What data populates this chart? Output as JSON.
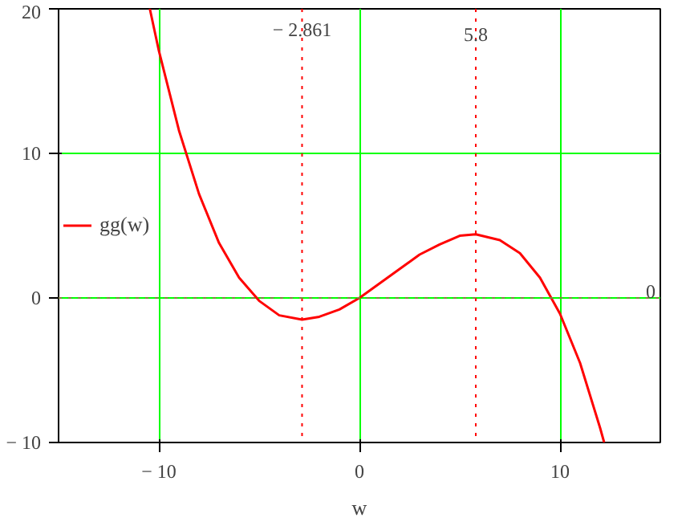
{
  "chart_data": {
    "type": "line",
    "xlabel": "w",
    "x": [
      -10.45,
      -10,
      -9,
      -8,
      -7,
      -6,
      -5,
      -4,
      -2.861,
      -2,
      -1,
      0,
      1,
      2,
      3,
      4,
      5,
      5.8,
      7,
      8,
      9,
      10,
      11,
      12,
      12.2
    ],
    "series": [
      {
        "name": "gg(w)",
        "color": "#ff0000",
        "values": [
          20.0,
          17.1,
          11.6,
          7.2,
          3.8,
          1.4,
          -0.2,
          -1.2,
          -1.5,
          -1.3,
          -0.8,
          0.0,
          1.0,
          2.0,
          3.0,
          3.7,
          4.3,
          4.4,
          4.0,
          3.1,
          1.4,
          -1.1,
          -4.5,
          -9.0,
          -10.0
        ]
      }
    ],
    "xlim": [
      -15,
      15
    ],
    "ylim": [
      -10,
      20
    ],
    "xticks": [
      {
        "value": -10,
        "label": "− 10"
      },
      0,
      10
    ],
    "yticks": [
      {
        "value": -10,
        "label": "− 10"
      },
      0,
      10,
      20
    ],
    "grid": true,
    "legend": "left",
    "line_style": "solid",
    "marker": "none",
    "ref_lines": [
      {
        "axis": "x",
        "value": -2.861,
        "label": "− 2.861",
        "color": "#ff0000",
        "line_style": "dotted"
      },
      {
        "axis": "x",
        "value": 5.8,
        "label": "5.8",
        "color": "#ff0000",
        "line_style": "dotted"
      },
      {
        "axis": "y",
        "value": 0,
        "label": "0",
        "color": "#808040",
        "line_style": "dotted"
      }
    ]
  }
}
